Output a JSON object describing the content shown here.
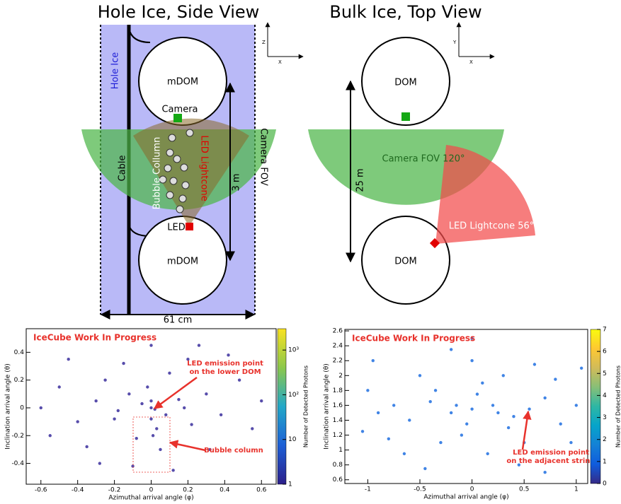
{
  "side_view": {
    "title": "Hole Ice, Side View",
    "hole_ice": "Hole Ice",
    "dom_top": "mDOM",
    "dom_bottom": "mDOM",
    "camera": "Camera",
    "cable": "Cable",
    "bubble_column": "Bubble Collumn",
    "led_lightcone": "LED Lightcone",
    "camera_fov": "Camera FOV",
    "height": "3 m",
    "led": "LED",
    "width": "61 cm",
    "axis_vertical": "Z",
    "axis_horizontal": "X"
  },
  "top_view": {
    "title": "Bulk Ice, Top View",
    "dom_top": "DOM",
    "dom_bottom": "DOM",
    "camera_fov": "Camera FOV 120°",
    "distance": "25 m",
    "led_lightcone": "LED Lightcone 56°",
    "axis_vertical": "Y",
    "axis_horizontal": "X"
  },
  "chart_data": [
    {
      "type": "scatter",
      "title": "IceCube Work In Progress",
      "xlabel": "Azimuthal arrival angle (φ)",
      "ylabel": "Inclination arrival angle (θ)",
      "annotations": [
        [
          "LED emission point",
          "on the lower DOM"
        ],
        [
          "Bubble column"
        ]
      ],
      "xlim": [
        -0.68,
        0.68
      ],
      "xticks": [
        -0.6,
        -0.4,
        -0.2,
        0,
        0.2,
        0.4,
        0.6
      ],
      "ylim": [
        -0.55,
        0.57
      ],
      "yticks": [
        -0.4,
        -0.2,
        0,
        0.2,
        0.4
      ],
      "color": "#3a2e9c",
      "x": [
        0,
        0.02,
        -0.05,
        0.08,
        -0.12,
        0.15,
        -0.2,
        0.22,
        -0.3,
        0.3,
        -0.25,
        0.1,
        -0.08,
        0.05,
        -0.4,
        0.38,
        -0.15,
        0.2,
        -0.35,
        0.32,
        -0.5,
        0.48,
        -0.55,
        0.55,
        0,
        -0.1,
        0.12,
        -0.45,
        0.42,
        -0.02,
        0.03,
        -0.18,
        0.18,
        0,
        0.01,
        -0.6,
        0.6,
        -0.28,
        0.26,
        0
      ],
      "values": [
        0,
        -0.01,
        0.03,
        -0.05,
        0.1,
        0.06,
        -0.08,
        -0.12,
        0.05,
        0.1,
        0.2,
        0.25,
        -0.22,
        -0.3,
        -0.1,
        -0.05,
        0.32,
        0.35,
        -0.28,
        -0.3,
        0.15,
        0.2,
        -0.2,
        -0.15,
        0.45,
        -0.42,
        -0.45,
        0.35,
        0.38,
        0.15,
        -0.15,
        -0.02,
        0,
        -0.08,
        -0.2,
        0,
        0.05,
        -0.4,
        0.45,
        0.05
      ],
      "colorbar": {
        "label": "Number of Detected Photons",
        "log": true,
        "lim": [
          1,
          3000
        ],
        "ticks": [
          1,
          10,
          {
            "value": 100,
            "label": "10²"
          },
          {
            "value": 1000,
            "label": "10³"
          }
        ],
        "colors": [
          "#2c1f8a",
          "#1d5fd6",
          "#22a8c8",
          "#8cc84b",
          "#f9e221"
        ]
      }
    },
    {
      "type": "scatter",
      "title": "IceCube Work In Progress",
      "xlabel": "Azimuthal arrival angle (φ)",
      "ylabel": "Inclination arrival angle (θ)",
      "annotations": [
        [
          "LED emission point",
          "on the adjacent string"
        ]
      ],
      "xlim": [
        -1.22,
        1.11
      ],
      "xticks": [
        -1,
        -0.5,
        0,
        0.5,
        1
      ],
      "ylim": [
        0.55,
        2.62
      ],
      "yticks": [
        0.6,
        0.8,
        1,
        1.2,
        1.4,
        1.6,
        1.8,
        2,
        2.2,
        2.4,
        2.6
      ],
      "color": "#1f6ee0",
      "x": [
        0,
        0.2,
        -0.2,
        0.4,
        -0.4,
        0.55,
        -0.6,
        0.7,
        -0.75,
        0.85,
        -0.9,
        0.1,
        -0.1,
        0.3,
        -0.3,
        0.5,
        -0.5,
        0.8,
        -0.8,
        1.0,
        -1.0,
        0,
        0.15,
        -0.2,
        0.6,
        -0.65,
        0.95,
        -1.05,
        0.35,
        -0.35,
        0.05,
        -0.05,
        0.25,
        -0.15,
        1.05,
        -0.95,
        0.45,
        -0.45,
        0,
        0.7
      ],
      "values": [
        1.55,
        1.6,
        1.5,
        1.45,
        1.65,
        1.55,
        1.4,
        1.7,
        1.6,
        1.35,
        1.5,
        1.9,
        1.2,
        2.0,
        1.1,
        1.1,
        2.0,
        1.95,
        1.15,
        1.6,
        1.8,
        2.2,
        0.95,
        2.35,
        2.15,
        0.95,
        1.1,
        1.25,
        1.3,
        1.8,
        1.75,
        1.35,
        1.5,
        1.6,
        2.1,
        2.2,
        0.8,
        0.75,
        2.5,
        0.7
      ],
      "colorbar": {
        "label": "Number of Detected Photons",
        "log": false,
        "lim": [
          0,
          7
        ],
        "ticks": [
          0,
          1,
          2,
          3,
          4,
          5,
          6,
          7
        ],
        "colors": [
          "#352a87",
          "#0f5cdd",
          "#1481d6",
          "#06a4ca",
          "#2eb7a4",
          "#87bf77",
          "#d1bb59",
          "#fec832",
          "#f9fb0e"
        ]
      }
    }
  ]
}
